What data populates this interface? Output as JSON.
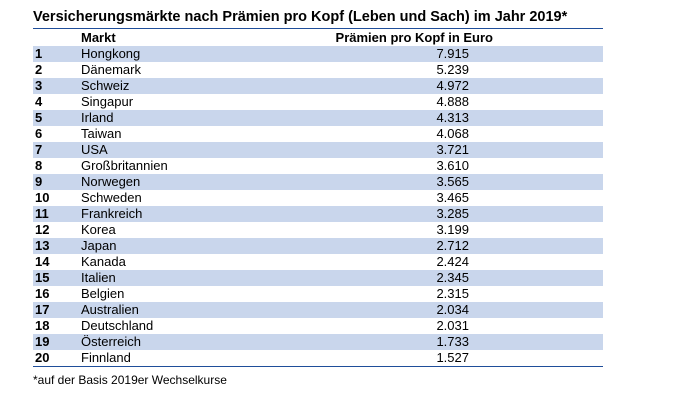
{
  "chart_data": {
    "type": "table",
    "title": "Versicherungsmärkte nach Prämien pro Kopf (Leben und Sach) im Jahr 2019*",
    "columns": [
      "",
      "Markt",
      "Prämien pro Kopf in Euro"
    ],
    "rows": [
      {
        "rank": "1",
        "market": "Hongkong",
        "value": "7.915"
      },
      {
        "rank": "2",
        "market": "Dänemark",
        "value": "5.239"
      },
      {
        "rank": "3",
        "market": "Schweiz",
        "value": "4.972"
      },
      {
        "rank": "4",
        "market": "Singapur",
        "value": "4.888"
      },
      {
        "rank": "5",
        "market": "Irland",
        "value": "4.313"
      },
      {
        "rank": "6",
        "market": "Taiwan",
        "value": "4.068"
      },
      {
        "rank": "7",
        "market": "USA",
        "value": "3.721"
      },
      {
        "rank": "8",
        "market": "Großbritannien",
        "value": "3.610"
      },
      {
        "rank": "9",
        "market": "Norwegen",
        "value": "3.565"
      },
      {
        "rank": "10",
        "market": "Schweden",
        "value": "3.465"
      },
      {
        "rank": "11",
        "market": "Frankreich",
        "value": "3.285"
      },
      {
        "rank": "12",
        "market": "Korea",
        "value": "3.199"
      },
      {
        "rank": "13",
        "market": "Japan",
        "value": "2.712"
      },
      {
        "rank": "14",
        "market": "Kanada",
        "value": "2.424"
      },
      {
        "rank": "15",
        "market": "Italien",
        "value": "2.345"
      },
      {
        "rank": "16",
        "market": "Belgien",
        "value": "2.315"
      },
      {
        "rank": "17",
        "market": "Australien",
        "value": "2.034"
      },
      {
        "rank": "18",
        "market": "Deutschland",
        "value": "2.031"
      },
      {
        "rank": "19",
        "market": "Österreich",
        "value": "1.733"
      },
      {
        "rank": "20",
        "market": "Finnland",
        "value": "1.527"
      }
    ],
    "footnote": "*auf der Basis 2019er Wechselkurse",
    "colors": {
      "band": "#c9d6ec",
      "rule": "#1f4e9a"
    }
  }
}
